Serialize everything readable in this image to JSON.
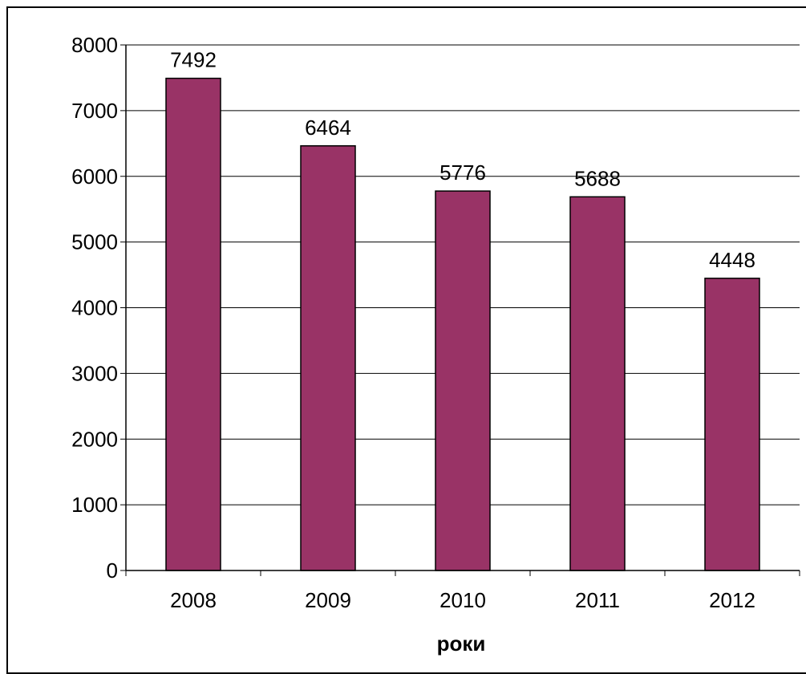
{
  "chart_data": {
    "type": "bar",
    "title": "",
    "xlabel": "роки",
    "ylabel": "",
    "categories": [
      "2008",
      "2009",
      "2010",
      "2011",
      "2012"
    ],
    "values": [
      7492,
      6464,
      5776,
      5688,
      4448
    ],
    "data_labels": [
      "7492",
      "6464",
      "5776",
      "5688",
      "4448"
    ],
    "ylim": [
      0,
      8000
    ],
    "yticks": [
      0,
      1000,
      2000,
      3000,
      4000,
      5000,
      6000,
      7000,
      8000
    ],
    "ytick_labels": [
      "0",
      "1000",
      "2000",
      "3000",
      "4000",
      "5000",
      "6000",
      "7000",
      "8000"
    ],
    "grid": true,
    "legend": "none",
    "bar_color": "#993366",
    "bar_edge_color": "#000000",
    "gridline_color": "#000000"
  }
}
